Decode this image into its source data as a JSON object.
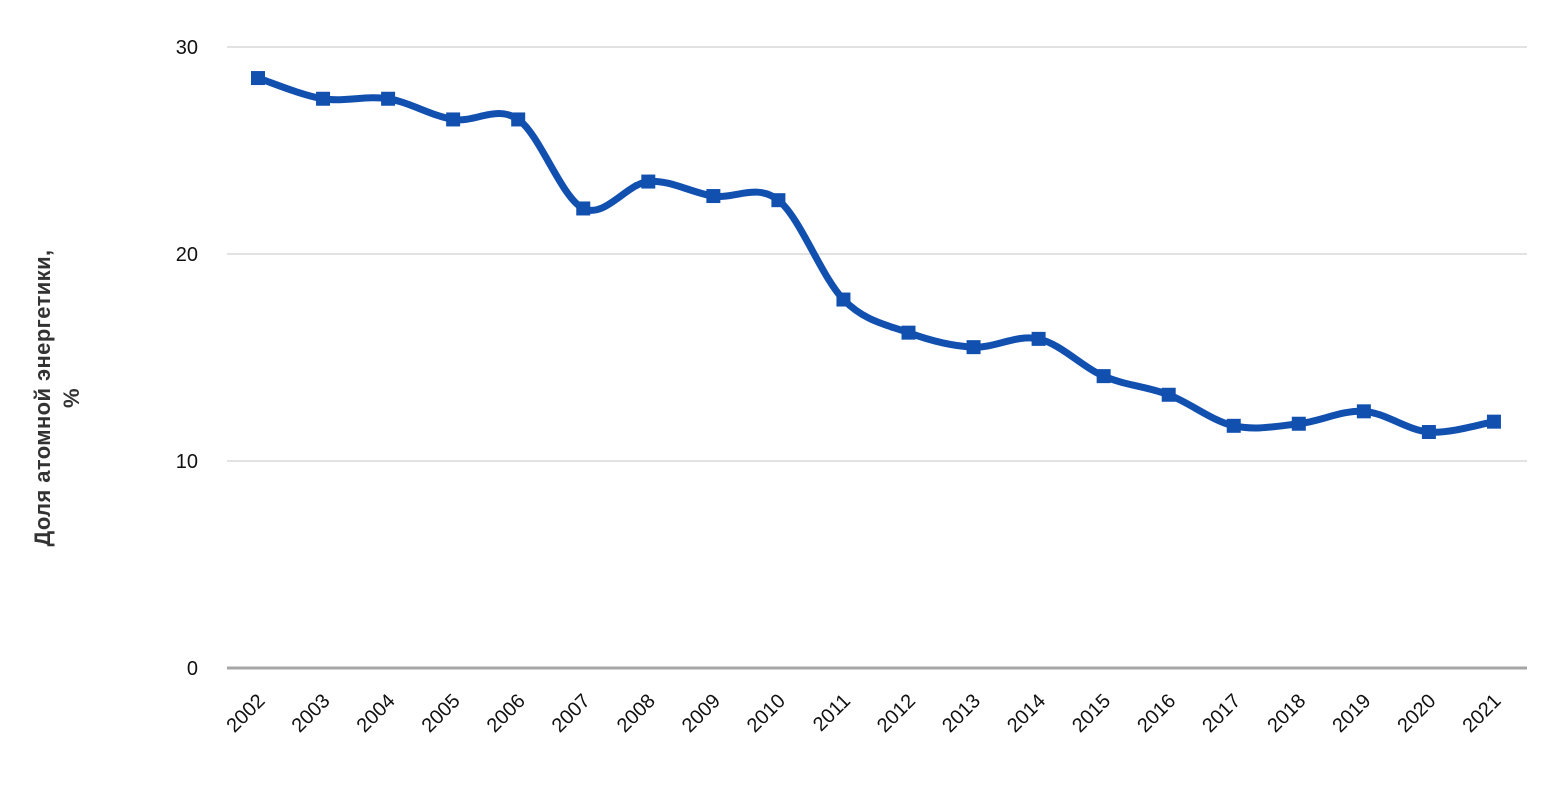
{
  "chart": {
    "y_axis_title_line1": "Доля атомной энергетики,",
    "y_axis_title_line2": "%"
  },
  "chart_data": {
    "type": "line",
    "title": "",
    "xlabel": "",
    "ylabel": "Доля атомной энергетики, %",
    "categories": [
      "2002",
      "2003",
      "2004",
      "2005",
      "2006",
      "2007",
      "2008",
      "2009",
      "2010",
      "2011",
      "2012",
      "2013",
      "2014",
      "2015",
      "2016",
      "2017",
      "2018",
      "2019",
      "2020",
      "2021"
    ],
    "series": [
      {
        "name": "Доля атомной энергетики, %",
        "values": [
          28.5,
          27.5,
          27.5,
          26.5,
          26.5,
          22.2,
          23.5,
          22.8,
          22.6,
          17.8,
          16.2,
          15.5,
          15.9,
          14.1,
          13.2,
          11.7,
          11.8,
          12.4,
          11.4,
          11.9
        ]
      }
    ],
    "ylim": [
      0,
      30
    ],
    "y_ticks": [
      0,
      10,
      20,
      30
    ],
    "grid": "horizontal",
    "legend": "none",
    "smooth": true,
    "marker": "square",
    "line_color": "#1250B0",
    "marker_color": "#1250B0"
  },
  "style": {
    "background": "#ffffff",
    "gridline_color": "#d9d9d9",
    "axis_line_color": "#a6a6a6",
    "tick_label_color": "#111111",
    "axis_title_color": "#333333"
  }
}
